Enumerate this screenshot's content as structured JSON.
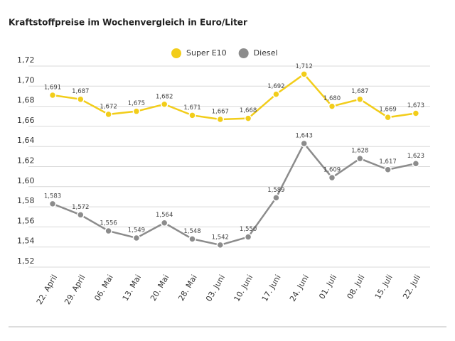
{
  "chart_data": {
    "type": "line",
    "title": "Kraftstoffpreise im Wochenvergleich in Euro/Liter",
    "categories": [
      "22. April",
      "29. April",
      "06. Mai",
      "13. Mai",
      "20. Mai",
      "28. Mai",
      "03. Juni",
      "10. Juni",
      "17. Juni",
      "24. Juni",
      "01. Juli",
      "08. Juli",
      "15. Juli",
      "22. Juli"
    ],
    "series": [
      {
        "name": "Super E10",
        "color": "#f2cd1a",
        "values": [
          1.691,
          1.687,
          1.672,
          1.675,
          1.682,
          1.671,
          1.667,
          1.668,
          1.692,
          1.712,
          1.68,
          1.687,
          1.669,
          1.673
        ],
        "value_labels": [
          "1,691",
          "1,687",
          "1,672",
          "1,675",
          "1,682",
          "1,671",
          "1,667",
          "1,668",
          "1,692",
          "1,712",
          "1,680",
          "1,687",
          "1,669",
          "1,673"
        ]
      },
      {
        "name": "Diesel",
        "color": "#8c8c8c",
        "values": [
          1.583,
          1.572,
          1.556,
          1.549,
          1.564,
          1.548,
          1.542,
          1.55,
          1.589,
          1.643,
          1.609,
          1.628,
          1.617,
          1.623
        ],
        "value_labels": [
          "1,583",
          "1,572",
          "1,556",
          "1,549",
          "1,564",
          "1,548",
          "1,542",
          "1,550",
          "1,589",
          "1,643",
          "1,609",
          "1,628",
          "1,617",
          "1,623"
        ]
      }
    ],
    "ylim": [
      1.52,
      1.72
    ],
    "yticks": [
      {
        "value": 1.52,
        "label": "1,52"
      },
      {
        "value": 1.54,
        "label": "1,54"
      },
      {
        "value": 1.56,
        "label": "1,56"
      },
      {
        "value": 1.58,
        "label": "1,58"
      },
      {
        "value": 1.6,
        "label": "1,60"
      },
      {
        "value": 1.62,
        "label": "1,62"
      },
      {
        "value": 1.64,
        "label": "1,64"
      },
      {
        "value": 1.66,
        "label": "1,66"
      },
      {
        "value": 1.68,
        "label": "1,68"
      },
      {
        "value": 1.7,
        "label": "1,70"
      },
      {
        "value": 1.72,
        "label": "1,72"
      }
    ],
    "grid": true
  }
}
